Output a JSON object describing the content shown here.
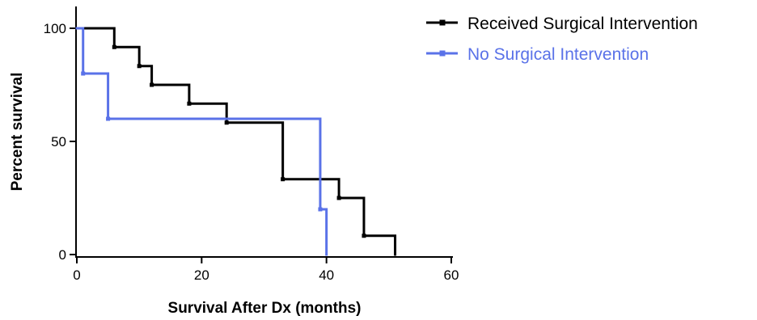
{
  "chart_data": {
    "type": "line",
    "subtype": "kaplan-meier-step",
    "xlabel": "Survival After Dx (months)",
    "ylabel": "Percent survival",
    "xlim": [
      0,
      60
    ],
    "ylim": [
      0,
      100
    ],
    "xticks": [
      0,
      20,
      40,
      60
    ],
    "yticks": [
      0,
      50,
      100
    ],
    "grid": false,
    "legend_position": "top-right",
    "series": [
      {
        "name": "Received Surgical Intervention",
        "color": "#000000",
        "steps": [
          {
            "x": 0,
            "y": 100
          },
          {
            "x": 6,
            "y": 91.7
          },
          {
            "x": 10,
            "y": 83.3
          },
          {
            "x": 12,
            "y": 75
          },
          {
            "x": 18,
            "y": 66.7
          },
          {
            "x": 24,
            "y": 58.3
          },
          {
            "x": 33,
            "y": 33.3
          },
          {
            "x": 42,
            "y": 25
          },
          {
            "x": 46,
            "y": 8.3
          },
          {
            "x": 51,
            "y": 0
          }
        ]
      },
      {
        "name": "No Surgical Intervention",
        "color": "#5a72e8",
        "steps": [
          {
            "x": 0,
            "y": 100
          },
          {
            "x": 1,
            "y": 80
          },
          {
            "x": 5,
            "y": 60
          },
          {
            "x": 39,
            "y": 20
          },
          {
            "x": 40,
            "y": 0
          }
        ]
      }
    ]
  }
}
